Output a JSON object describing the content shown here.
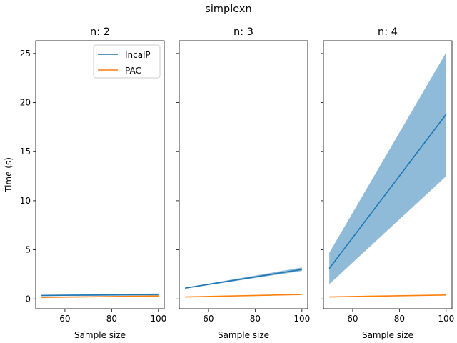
{
  "figure": {
    "title": "simplexn"
  },
  "chart_data": [
    {
      "type": "line",
      "title": "n: 2",
      "xlabel": "Sample size",
      "ylabel": "Time (s)",
      "xlim": [
        47.5,
        102.5
      ],
      "ylim": [
        -1.0,
        26.3
      ],
      "xticks": [
        "60",
        "80",
        "100"
      ],
      "yticks": [
        "0",
        "5",
        "10",
        "15",
        "20",
        "25"
      ],
      "legend": "upper right",
      "series": [
        {
          "name": "IncalP",
          "color": "#1f77b4",
          "x": [
            50,
            100
          ],
          "y": [
            0.35,
            0.45
          ],
          "band_low": [
            0.28,
            0.35
          ],
          "band_high": [
            0.42,
            0.55
          ]
        },
        {
          "name": "PAC",
          "color": "#ff7f0e",
          "x": [
            50,
            100
          ],
          "y": [
            0.15,
            0.3
          ],
          "band_low": [
            0.13,
            0.27
          ],
          "band_high": [
            0.17,
            0.33
          ]
        }
      ]
    },
    {
      "type": "line",
      "title": "n: 3",
      "xlabel": "Sample size",
      "ylabel": "",
      "xlim": [
        47.5,
        102.5
      ],
      "ylim": [
        -1.0,
        26.3
      ],
      "xticks": [
        "60",
        "80",
        "100"
      ],
      "yticks": [],
      "series": [
        {
          "name": "IncalP",
          "color": "#1f77b4",
          "x": [
            50,
            100
          ],
          "y": [
            1.1,
            3.0
          ],
          "band_low": [
            1.05,
            2.85
          ],
          "band_high": [
            1.15,
            3.2
          ]
        },
        {
          "name": "PAC",
          "color": "#ff7f0e",
          "x": [
            50,
            100
          ],
          "y": [
            0.2,
            0.45
          ],
          "band_low": [
            0.18,
            0.42
          ],
          "band_high": [
            0.22,
            0.48
          ]
        }
      ]
    },
    {
      "type": "line",
      "title": "n: 4",
      "xlabel": "Sample size",
      "ylabel": "",
      "xlim": [
        47.5,
        102.5
      ],
      "ylim": [
        -1.0,
        26.3
      ],
      "xticks": [
        "60",
        "80",
        "100"
      ],
      "yticks": [],
      "series": [
        {
          "name": "IncalP",
          "color": "#1f77b4",
          "x": [
            50,
            100
          ],
          "y": [
            3.1,
            18.8
          ],
          "band_low": [
            1.5,
            12.5
          ],
          "band_high": [
            4.7,
            25.1
          ]
        },
        {
          "name": "PAC",
          "color": "#ff7f0e",
          "x": [
            50,
            100
          ],
          "y": [
            0.2,
            0.4
          ],
          "band_low": [
            0.18,
            0.37
          ],
          "band_high": [
            0.22,
            0.43
          ]
        }
      ]
    }
  ]
}
